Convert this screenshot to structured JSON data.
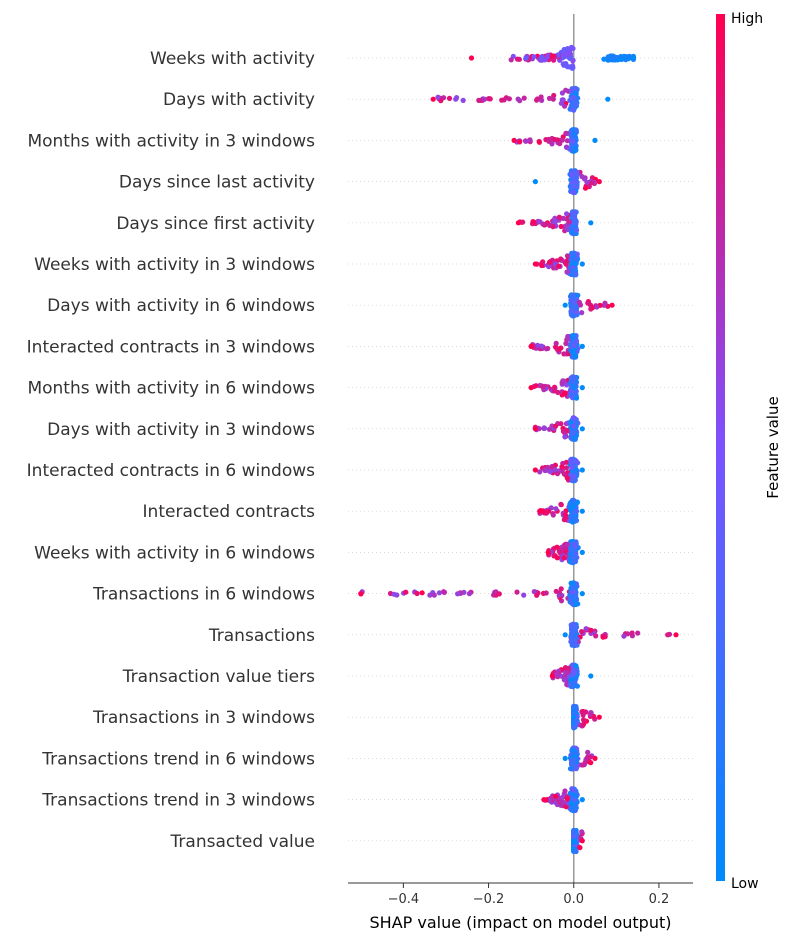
{
  "chart_data": {
    "type": "scatter",
    "subtype": "shap-beeswarm",
    "xlabel": "SHAP value (impact on model output)",
    "xlim": [
      -0.53,
      0.28
    ],
    "xticks": [
      -0.4,
      -0.2,
      0.0,
      0.2
    ],
    "xtick_labels": [
      "−0.4",
      "−0.2",
      "0.0",
      "0.2"
    ],
    "colorbar": {
      "title": "Feature value",
      "high_label": "High",
      "low_label": "Low",
      "low_color": "#008bfb",
      "mid_color": "#7c52ff",
      "high_color": "#ff0051"
    },
    "grid": false,
    "features": [
      {
        "name": "Weeks with activity",
        "shap_min": -0.24,
        "shap_max": 0.14,
        "pattern": "bimodal-high-neg"
      },
      {
        "name": "Days with activity",
        "shap_min": -0.33,
        "shap_max": 0.08,
        "pattern": "high-neg"
      },
      {
        "name": "Months with activity in 3 windows",
        "shap_min": -0.14,
        "shap_max": 0.05,
        "pattern": "high-neg"
      },
      {
        "name": "Days since last activity",
        "shap_min": -0.09,
        "shap_max": 0.06,
        "pattern": "high-pos"
      },
      {
        "name": "Days since first activity",
        "shap_min": -0.13,
        "shap_max": 0.04,
        "pattern": "high-neg"
      },
      {
        "name": "Weeks with activity in 3 windows",
        "shap_min": -0.09,
        "shap_max": 0.02,
        "pattern": "high-neg"
      },
      {
        "name": "Days with activity in 6 windows",
        "shap_min": -0.02,
        "shap_max": 0.09,
        "pattern": "high-pos"
      },
      {
        "name": "Interacted contracts in 3 windows",
        "shap_min": -0.1,
        "shap_max": 0.02,
        "pattern": "high-neg"
      },
      {
        "name": "Months with activity in 6 windows",
        "shap_min": -0.1,
        "shap_max": 0.02,
        "pattern": "high-neg"
      },
      {
        "name": "Days with activity in 3 windows",
        "shap_min": -0.09,
        "shap_max": 0.02,
        "pattern": "high-neg"
      },
      {
        "name": "Interacted contracts in 6 windows",
        "shap_min": -0.09,
        "shap_max": 0.02,
        "pattern": "high-neg"
      },
      {
        "name": "Interacted contracts",
        "shap_min": -0.08,
        "shap_max": 0.02,
        "pattern": "high-neg"
      },
      {
        "name": "Weeks with activity in 6 windows",
        "shap_min": -0.06,
        "shap_max": 0.02,
        "pattern": "high-neg"
      },
      {
        "name": "Transactions in 6 windows",
        "shap_min": -0.5,
        "shap_max": 0.02,
        "pattern": "high-neg"
      },
      {
        "name": "Transactions",
        "shap_min": -0.02,
        "shap_max": 0.24,
        "pattern": "high-pos"
      },
      {
        "name": "Transaction value tiers",
        "shap_min": -0.05,
        "shap_max": 0.04,
        "pattern": "high-neg"
      },
      {
        "name": "Transactions in 3 windows",
        "shap_min": 0.0,
        "shap_max": 0.06,
        "pattern": "high-pos"
      },
      {
        "name": "Transactions trend in 6 windows",
        "shap_min": -0.02,
        "shap_max": 0.05,
        "pattern": "high-pos"
      },
      {
        "name": "Transactions trend in 3 windows",
        "shap_min": -0.07,
        "shap_max": 0.02,
        "pattern": "high-neg"
      },
      {
        "name": "Transacted value",
        "shap_min": 0.0,
        "shap_max": 0.02,
        "pattern": "high-pos"
      }
    ]
  }
}
